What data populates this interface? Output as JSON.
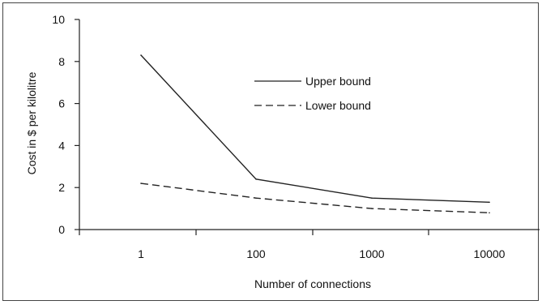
{
  "chart_data": {
    "type": "line",
    "categories": [
      "1",
      "100",
      "1000",
      "10000"
    ],
    "series": [
      {
        "name": "Upper bound",
        "values": [
          8.3,
          2.4,
          1.5,
          1.3
        ],
        "dash": "solid"
      },
      {
        "name": "Lower bound",
        "values": [
          2.2,
          1.5,
          1.0,
          0.8
        ],
        "dash": "dashed"
      }
    ],
    "title": "",
    "xlabel": "Number of connections",
    "ylabel": "Cost in $ per kilolitre",
    "ylim": [
      0,
      10
    ],
    "yticks": [
      "0",
      "2",
      "4",
      "6",
      "8",
      "10"
    ],
    "grid": false,
    "legend_position": "upper-center",
    "line_color": "#222222"
  }
}
